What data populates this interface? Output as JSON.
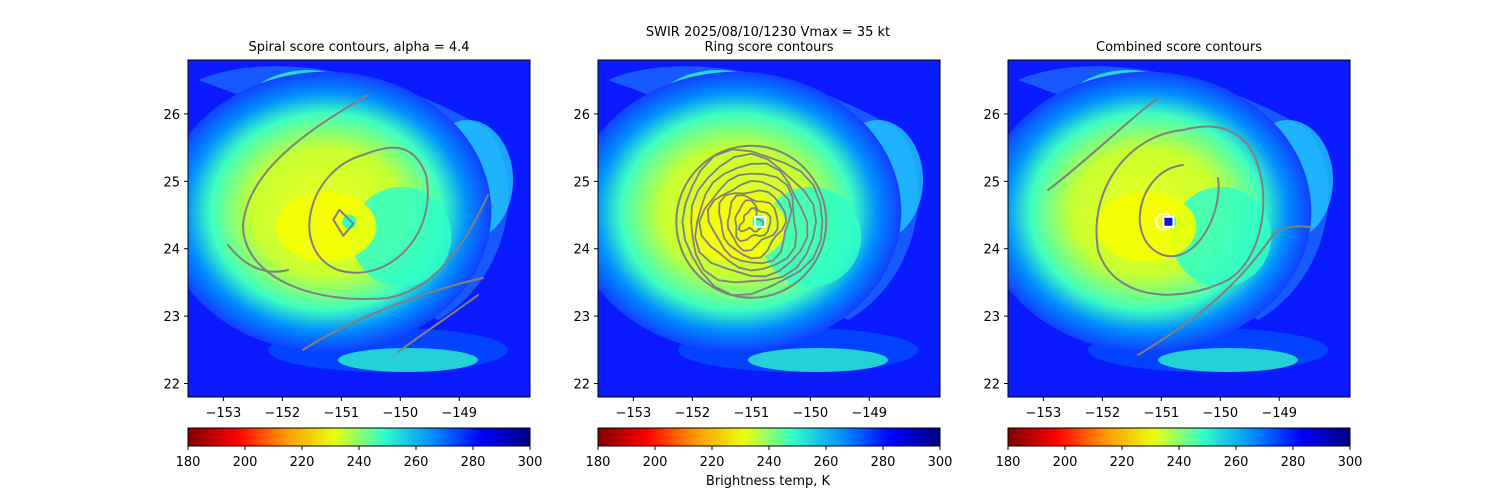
{
  "suptitle": "SWIR  2025/08/10/1230    Vmax = 35 kt",
  "colorbar_label": "Brightness temp, K",
  "colormap": [
    "#7f0000",
    "#ff0000",
    "#ff9900",
    "#e8ff10",
    "#30ffc8",
    "#0090ff",
    "#0000ff",
    "#00007f"
  ],
  "contour_color": "#808080",
  "chart_data": [
    {
      "type": "heatmap",
      "title": "Spiral score contours, alpha =  4.4",
      "x_ticks": [
        -153,
        -152,
        -151,
        -150,
        -149
      ],
      "x_tick_labels": [
        "−153",
        "−152",
        "−151",
        "−150",
        "−149"
      ],
      "y_ticks": [
        22,
        23,
        24,
        25,
        26
      ],
      "y_tick_labels": [
        "22",
        "23",
        "24",
        "25",
        "26"
      ],
      "xlim": [
        -153.6,
        -147.8
      ],
      "ylim": [
        21.8,
        26.8
      ],
      "center": {
        "lon": -151.0,
        "lat": 24.4
      },
      "colorbar": {
        "range": [
          180,
          300
        ],
        "ticks": [
          180,
          200,
          220,
          240,
          260,
          280,
          300
        ]
      },
      "marker": null
    },
    {
      "type": "heatmap",
      "title": "Ring score contours",
      "x_ticks": [
        -153,
        -152,
        -151,
        -150,
        -149
      ],
      "x_tick_labels": [
        "−153",
        "−152",
        "−151",
        "−150",
        "−149"
      ],
      "y_ticks": [
        22,
        23,
        24,
        25,
        26
      ],
      "y_tick_labels": [
        "22",
        "23",
        "24",
        "25",
        "26"
      ],
      "xlim": [
        -153.6,
        -147.8
      ],
      "ylim": [
        21.8,
        26.8
      ],
      "center": {
        "lon": -151.0,
        "lat": 24.4
      },
      "colorbar": {
        "range": [
          180,
          300
        ],
        "ticks": [
          180,
          200,
          220,
          240,
          260,
          280,
          300
        ]
      },
      "marker": {
        "lon": -150.85,
        "lat": 24.4,
        "style": "white-square"
      }
    },
    {
      "type": "heatmap",
      "title": "Combined score contours",
      "x_ticks": [
        -153,
        -152,
        -151,
        -150,
        -149
      ],
      "x_tick_labels": [
        "−153",
        "−152",
        "−151",
        "−150",
        "−149"
      ],
      "y_ticks": [
        22,
        23,
        24,
        25,
        26
      ],
      "y_tick_labels": [
        "22",
        "23",
        "24",
        "25",
        "26"
      ],
      "xlim": [
        -153.6,
        -147.8
      ],
      "ylim": [
        21.8,
        26.8
      ],
      "center": {
        "lon": -151.0,
        "lat": 24.4
      },
      "colorbar": {
        "range": [
          180,
          300
        ],
        "ticks": [
          180,
          200,
          220,
          240,
          260,
          280,
          300
        ]
      },
      "marker": {
        "lon": -150.88,
        "lat": 24.4,
        "style": "blue-square"
      }
    }
  ]
}
